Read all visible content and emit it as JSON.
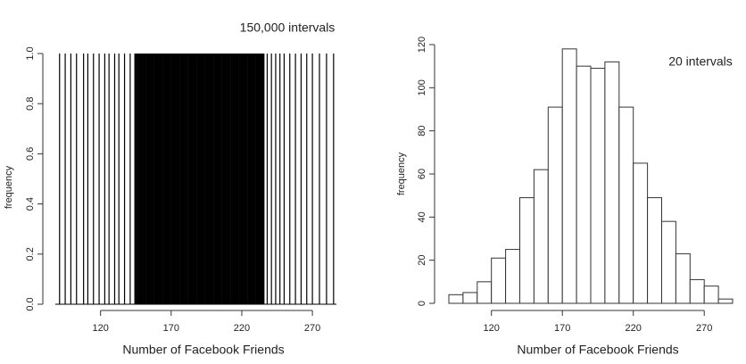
{
  "chart_data": [
    {
      "type": "spike",
      "title": "150,000 intervals",
      "xlabel": "Number of Facebook Friends",
      "ylabel": "frequency",
      "color": "#000000",
      "x": [
        91,
        95,
        99,
        103,
        108,
        111,
        115,
        119,
        123,
        126,
        130,
        133,
        137,
        141,
        145,
        147,
        149,
        151,
        153,
        155,
        157,
        159,
        161,
        163,
        165,
        167,
        169,
        171,
        173,
        175,
        177,
        179,
        181,
        183,
        185,
        187,
        189,
        191,
        193,
        195,
        197,
        199,
        201,
        203,
        205,
        207,
        209,
        211,
        213,
        215,
        217,
        219,
        221,
        223,
        225,
        227,
        229,
        231,
        233,
        235,
        238,
        241,
        244,
        247,
        250,
        254,
        258,
        262,
        266,
        270,
        275,
        280,
        285
      ],
      "values": [
        1,
        1,
        1,
        1,
        1,
        1,
        1,
        1,
        1,
        1,
        1,
        1,
        1,
        1,
        1,
        1,
        1,
        1,
        1,
        1,
        1,
        1,
        1,
        1,
        1,
        1,
        1,
        1,
        1,
        1,
        1,
        1,
        1,
        1,
        1,
        1,
        1,
        1,
        1,
        1,
        1,
        1,
        1,
        1,
        1,
        1,
        1,
        1,
        1,
        1,
        1,
        1,
        1,
        1,
        1,
        1,
        1,
        1,
        1,
        1,
        1,
        1,
        1,
        1,
        1,
        1,
        1,
        1,
        1,
        1,
        1,
        1,
        1
      ],
      "xlim": [
        88,
        287
      ],
      "xticks": [
        120,
        170,
        220,
        270
      ],
      "ylim": [
        0,
        1
      ],
      "yticks": [
        {
          "value": 0,
          "label": "0.0"
        },
        0.2,
        0.4,
        0.6,
        0.8,
        {
          "value": 1,
          "label": "1.0"
        }
      ]
    },
    {
      "type": "histogram",
      "title": "20 intervals",
      "xlabel": "Number of Facebook Friends",
      "ylabel": "frequency",
      "color": "#ffffff",
      "bins": [
        90,
        100,
        110,
        120,
        130,
        140,
        150,
        160,
        170,
        180,
        190,
        200,
        210,
        220,
        230,
        240,
        250,
        260,
        270,
        280,
        290
      ],
      "values": [
        4,
        5,
        10,
        21,
        25,
        49,
        62,
        91,
        118,
        110,
        109,
        112,
        91,
        65,
        49,
        38,
        23,
        11,
        8,
        2
      ],
      "xlim": [
        90,
        290
      ],
      "xticks": [
        120,
        170,
        220,
        270
      ],
      "ylim": [
        0,
        120
      ],
      "yticks": [
        0,
        20,
        40,
        60,
        80,
        100,
        120
      ]
    }
  ]
}
